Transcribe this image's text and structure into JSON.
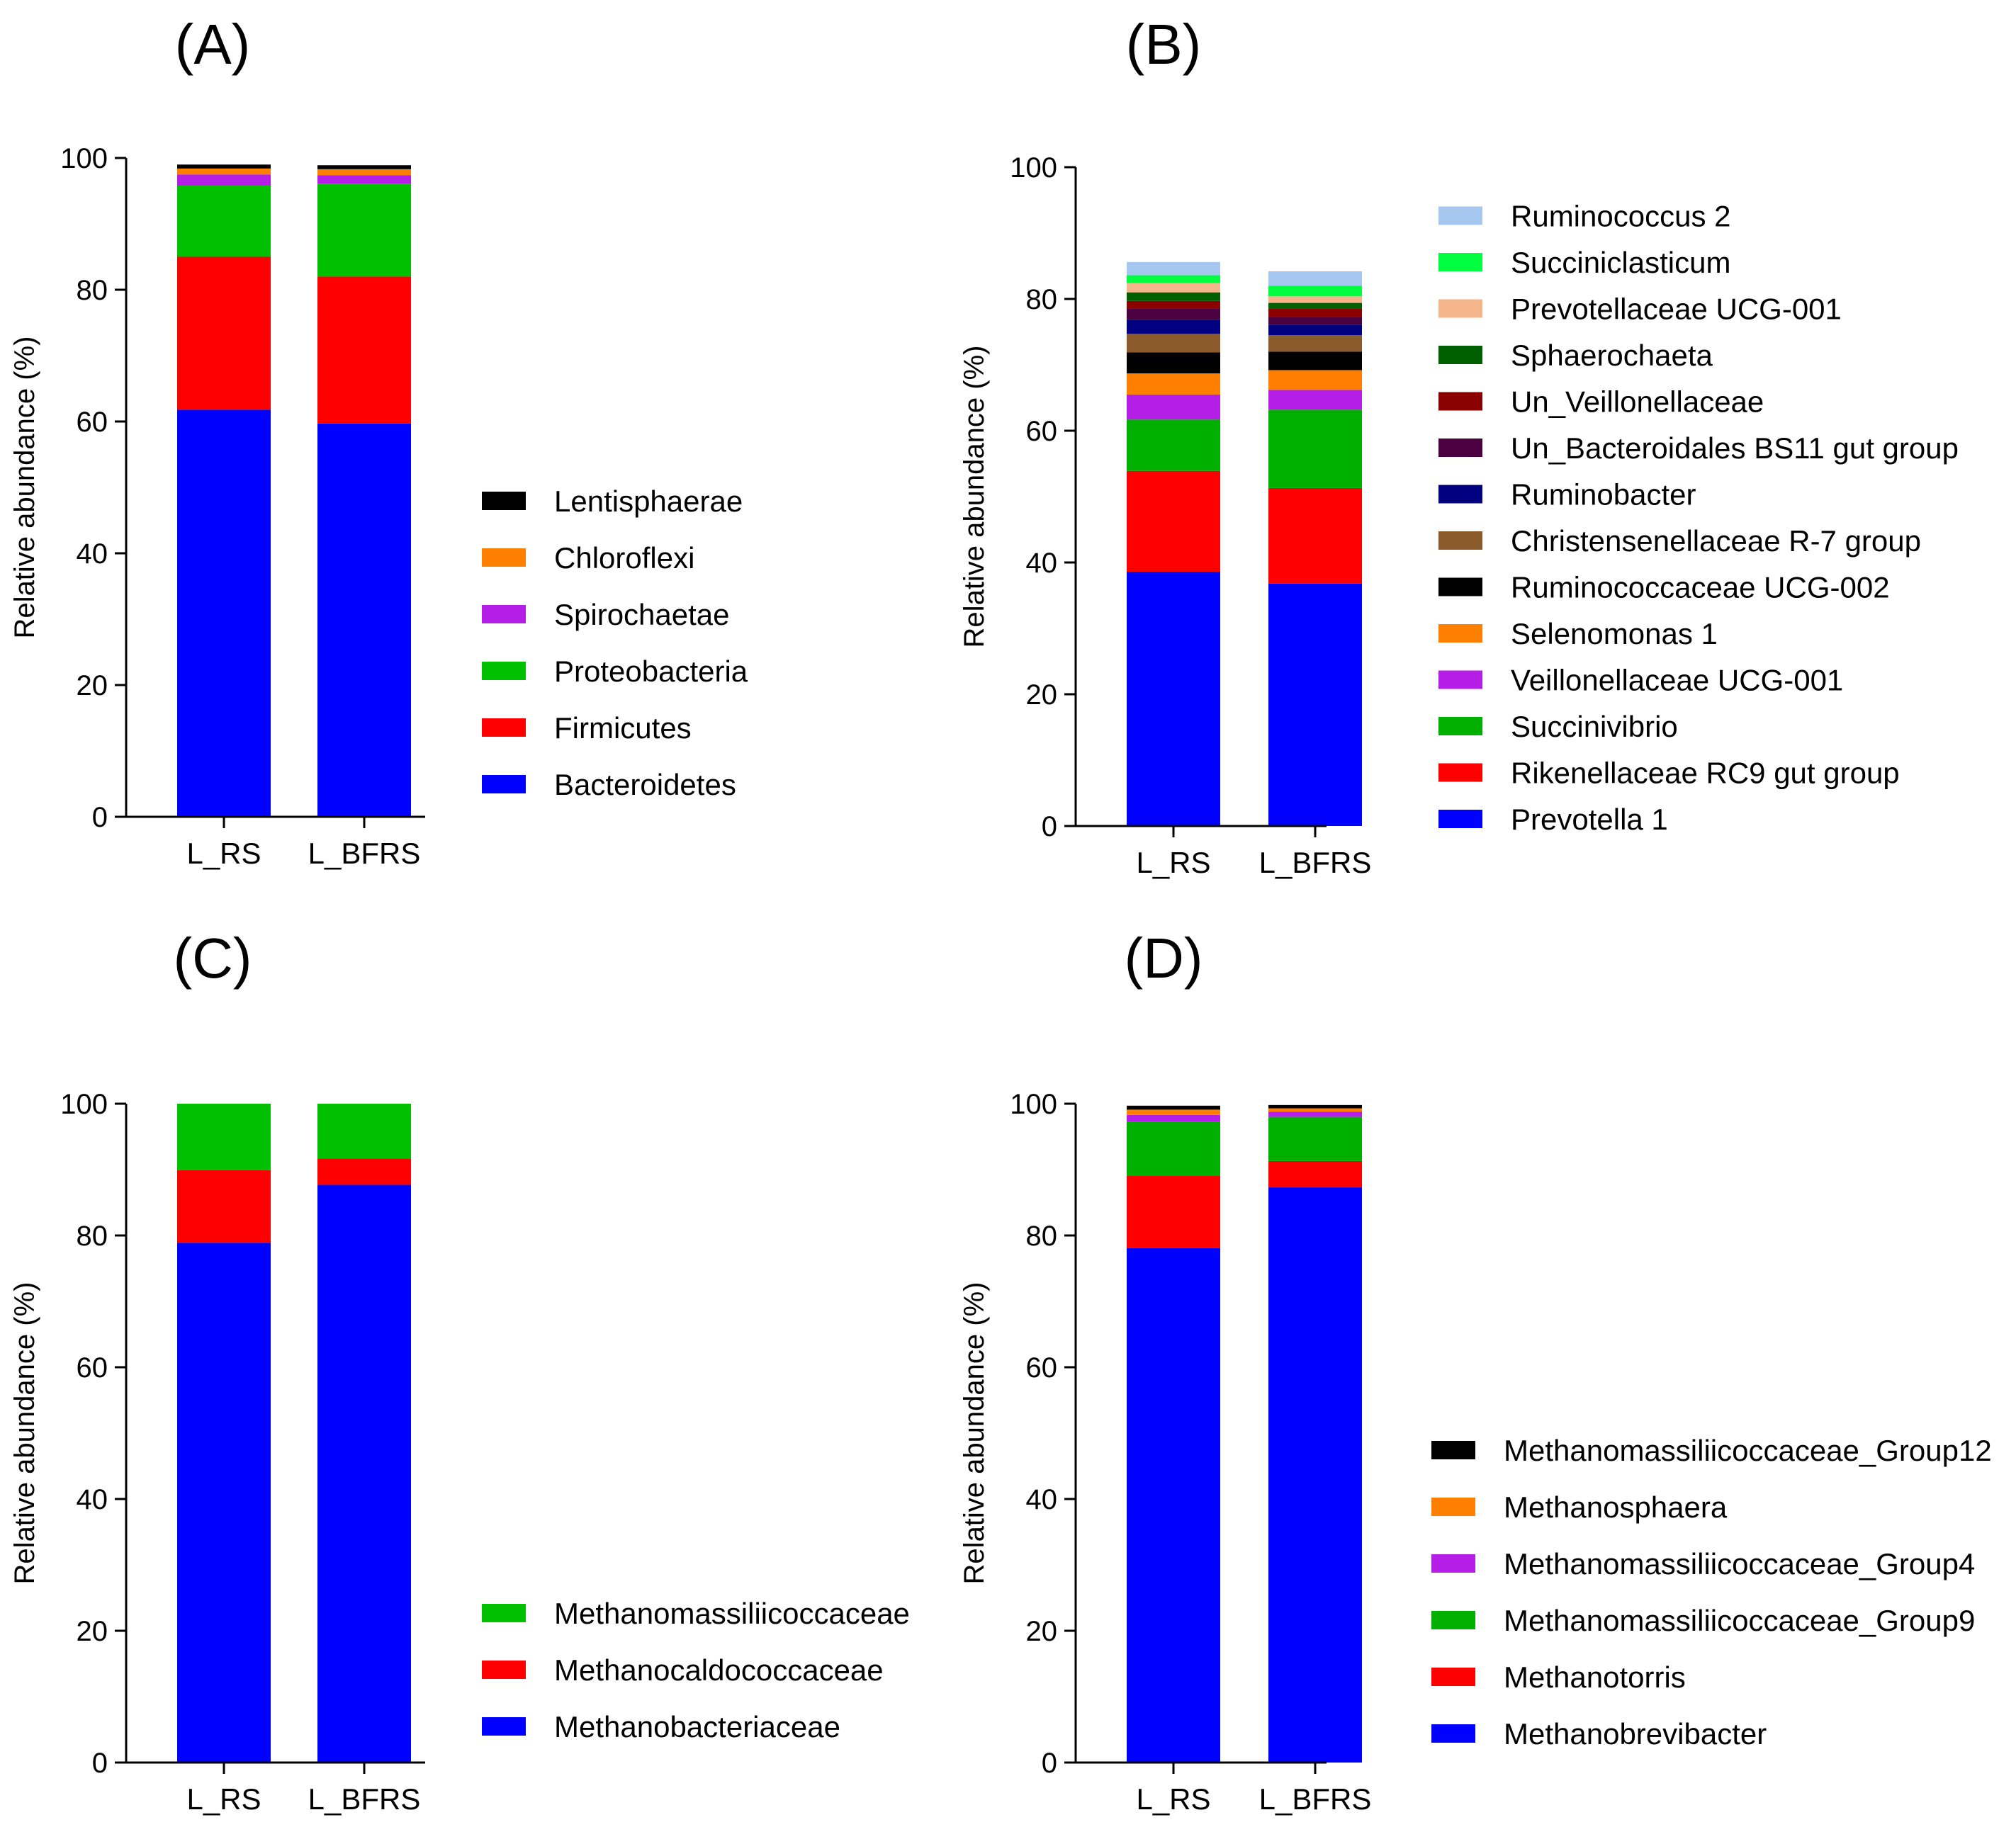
{
  "chart_data": [
    {
      "panel_label": "(A)",
      "type": "bar",
      "stacked": true,
      "ylabel": "Relative abundance (%)",
      "xlabel": "",
      "ylim": [
        0,
        100
      ],
      "yticks": [
        0,
        20,
        40,
        60,
        80,
        100
      ],
      "categories": [
        "L_RS",
        "L_BFRS"
      ],
      "legend_position": "right",
      "series": [
        {
          "name": "Bacteroidetes",
          "color": "#0000ff",
          "values": [
            61.8,
            59.7
          ]
        },
        {
          "name": "Firmicutes",
          "color": "#ff0000",
          "values": [
            23.2,
            22.3
          ]
        },
        {
          "name": "Proteobacteria",
          "color": "#00c000",
          "values": [
            10.8,
            14.1
          ]
        },
        {
          "name": "Spirochaetae",
          "color": "#b41ee6",
          "values": [
            1.7,
            1.3
          ]
        },
        {
          "name": "Chloroflexi",
          "color": "#ff8000",
          "values": [
            0.9,
            0.9
          ]
        },
        {
          "name": "Lentisphaerae",
          "color": "#000000",
          "values": [
            0.6,
            0.6
          ]
        }
      ]
    },
    {
      "panel_label": "(B)",
      "type": "bar",
      "stacked": true,
      "ylabel": "Relative abundance (%)",
      "xlabel": "",
      "ylim": [
        0,
        100
      ],
      "yticks": [
        0,
        20,
        40,
        60,
        80,
        100
      ],
      "categories": [
        "L_RS",
        "L_BFRS"
      ],
      "legend_position": "right",
      "series": [
        {
          "name": "Prevotella 1",
          "color": "#0000ff",
          "values": [
            38.6,
            36.8
          ]
        },
        {
          "name": "Rikenellaceae RC9 gut group",
          "color": "#ff0000",
          "values": [
            15.3,
            14.5
          ]
        },
        {
          "name": "Succinivibrio",
          "color": "#00b000",
          "values": [
            7.8,
            11.9
          ]
        },
        {
          "name": "Veillonellaceae UCG-001",
          "color": "#b41ee6",
          "values": [
            3.8,
            3.0
          ]
        },
        {
          "name": "Selenomonas 1",
          "color": "#ff8000",
          "values": [
            3.2,
            3.0
          ]
        },
        {
          "name": "Ruminococcaceae UCG-002",
          "color": "#000000",
          "values": [
            3.2,
            2.8
          ]
        },
        {
          "name": "Christensenellaceae R-7 group",
          "color": "#8b5a2b",
          "values": [
            2.8,
            2.5
          ]
        },
        {
          "name": "Ruminobacter",
          "color": "#000080",
          "values": [
            2.2,
            1.6
          ]
        },
        {
          "name": "Un_Bacteroidales BS11 gut group",
          "color": "#4b0040",
          "values": [
            1.6,
            1.2
          ]
        },
        {
          "name": "Un_Veillonellaceae",
          "color": "#8b0000",
          "values": [
            1.2,
            1.2
          ]
        },
        {
          "name": "Sphaerochaeta",
          "color": "#006000",
          "values": [
            1.3,
            0.9
          ]
        },
        {
          "name": "Prevotellaceae UCG-001",
          "color": "#f4b58a",
          "values": [
            1.4,
            1.0
          ]
        },
        {
          "name": "Succiniclasticum",
          "color": "#00ff40",
          "values": [
            1.2,
            1.6
          ]
        },
        {
          "name": "Ruminococcus 2",
          "color": "#a6c8f0",
          "values": [
            2.0,
            2.2
          ]
        }
      ]
    },
    {
      "panel_label": "(C)",
      "type": "bar",
      "stacked": true,
      "ylabel": "Relative abundance (%)",
      "xlabel": "",
      "ylim": [
        0,
        100
      ],
      "yticks": [
        0,
        20,
        40,
        60,
        80,
        100
      ],
      "categories": [
        "L_RS",
        "L_BFRS"
      ],
      "legend_position": "right",
      "series": [
        {
          "name": "Methanobacteriaceae",
          "color": "#0000ff",
          "values": [
            78.9,
            87.7
          ]
        },
        {
          "name": "Methanocaldococcaceae",
          "color": "#ff0000",
          "values": [
            11.0,
            4.0
          ]
        },
        {
          "name": "Methanomassiliicoccaceae",
          "color": "#00c000",
          "values": [
            10.1,
            8.3
          ]
        }
      ]
    },
    {
      "panel_label": "(D)",
      "type": "bar",
      "stacked": true,
      "ylabel": "Relative abundance (%)",
      "xlabel": "",
      "ylim": [
        0,
        100
      ],
      "yticks": [
        0,
        20,
        40,
        60,
        80,
        100
      ],
      "categories": [
        "L_RS",
        "L_BFRS"
      ],
      "legend_position": "right",
      "series": [
        {
          "name": "Methanobrevibacter",
          "color": "#0000ff",
          "values": [
            78.1,
            87.3
          ]
        },
        {
          "name": "Methanotorris",
          "color": "#ff0000",
          "values": [
            11.0,
            4.0
          ]
        },
        {
          "name": "Methanomassiliicoccaceae_Group9",
          "color": "#00b000",
          "values": [
            8.2,
            6.7
          ]
        },
        {
          "name": "Methanomassiliicoccaceae_Group4",
          "color": "#b41ee6",
          "values": [
            1.0,
            0.8
          ]
        },
        {
          "name": "Methanosphaera",
          "color": "#ff8000",
          "values": [
            0.8,
            0.5
          ]
        },
        {
          "name": "Methanomassiliicoccaceae_Group12",
          "color": "#000000",
          "values": [
            0.6,
            0.5
          ]
        }
      ]
    }
  ]
}
